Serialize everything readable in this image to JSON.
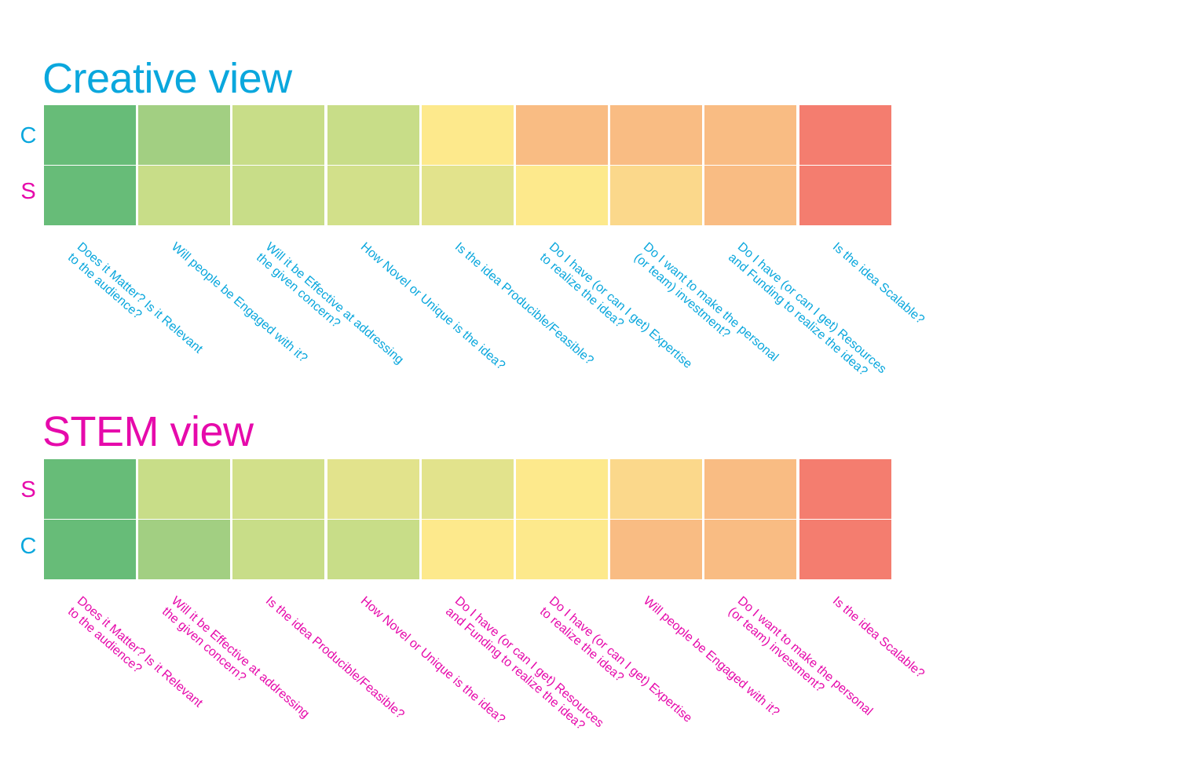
{
  "colors": {
    "creative": "#0aa7dd",
    "stem": "#e60aab",
    "scale": [
      "#67bc78",
      "#a2cf82",
      "#c8dd88",
      "#d2e08a",
      "#e2e38c",
      "#fde98c",
      "#fbd88b",
      "#f9bc83",
      "#f47d6f"
    ]
  },
  "sections": [
    {
      "title": "Creative view",
      "title_color": "creative",
      "rows": [
        {
          "label": "C",
          "color": "creative",
          "levels": [
            0,
            1,
            2,
            2,
            5,
            7,
            7,
            7,
            8
          ]
        },
        {
          "label": "S",
          "color": "stem",
          "levels": [
            0,
            2,
            2,
            3,
            4,
            5,
            6,
            7,
            8
          ]
        }
      ],
      "label_color": "creative",
      "criteria": [
        [
          "Does it Matter? Is it Relevant",
          "to the audience?"
        ],
        [
          "Will people be Engaged with it?"
        ],
        [
          "Will it be Effective at addressing",
          "the given concern?"
        ],
        [
          "How Novel or Unique is the idea?"
        ],
        [
          "Is the idea Producible/Feasible?"
        ],
        [
          "Do I have (or can I get) Expertise",
          "to realize the idea?"
        ],
        [
          "Do I want to make the personal",
          "(or team) investment?"
        ],
        [
          "Do I have (or can I get) Resources",
          "and Funding to realize the idea?"
        ],
        [
          "Is the idea Scalable?"
        ]
      ]
    },
    {
      "title": "STEM view",
      "title_color": "stem",
      "rows": [
        {
          "label": "S",
          "color": "stem",
          "levels": [
            0,
            2,
            3,
            4,
            4,
            5,
            6,
            7,
            8
          ]
        },
        {
          "label": "C",
          "color": "creative",
          "levels": [
            0,
            1,
            2,
            2,
            5,
            5,
            7,
            7,
            8
          ]
        }
      ],
      "label_color": "stem",
      "criteria": [
        [
          "Does it Matter? Is it Relevant",
          "to the audience?"
        ],
        [
          "Will it be Effective at addressing",
          "the given concern?"
        ],
        [
          "Is the idea Producible/Feasible?"
        ],
        [
          "How Novel or Unique is the idea?"
        ],
        [
          "Do I have (or can I get) Resources",
          "and Funding to realize the idea?"
        ],
        [
          "Do I have (or can I get) Expertise",
          "to realize the idea?"
        ],
        [
          "Will people be Engaged with it?"
        ],
        [
          "Do I want to make the personal",
          "(or team) investment?"
        ],
        [
          "Is the idea Scalable?"
        ]
      ]
    }
  ]
}
